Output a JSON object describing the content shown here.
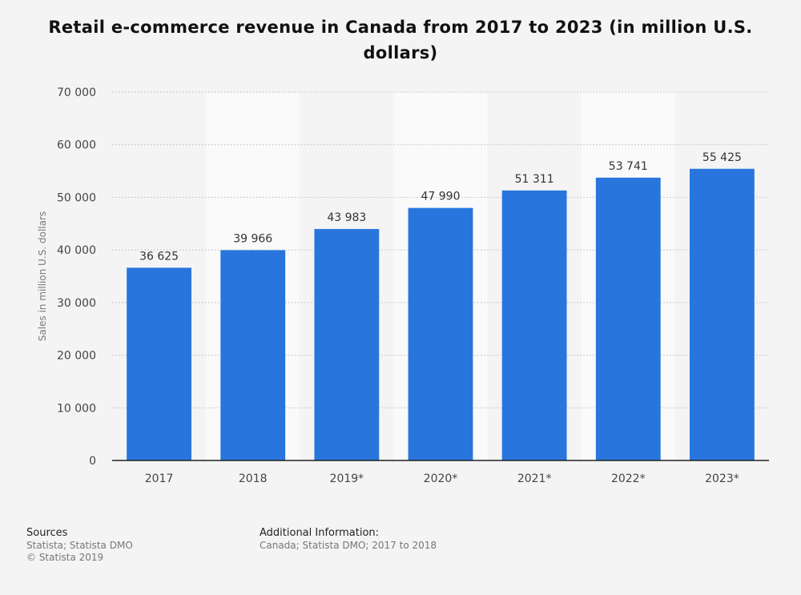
{
  "title": "Retail e-commerce revenue in Canada from 2017 to 2023 (in million U.S. dollars)",
  "footer": {
    "sources_heading": "Sources",
    "sources_line1": "Statista; Statista DMO",
    "sources_line2": "© Statista 2019",
    "info_heading": "Additional Information:",
    "info_line1": "Canada; Statista DMO; 2017 to 2018"
  },
  "colors": {
    "bar": "#2876dd",
    "background": "#f4f4f4",
    "band": "#fafafa"
  },
  "chart_data": {
    "type": "bar",
    "title": "Retail e-commerce revenue in Canada from 2017 to 2023 (in million U.S. dollars)",
    "xlabel": "",
    "ylabel": "Sales in million U.S. dollars",
    "categories": [
      "2017",
      "2018",
      "2019*",
      "2020*",
      "2021*",
      "2022*",
      "2023*"
    ],
    "values": [
      36625,
      39966,
      43983,
      47990,
      51311,
      53741,
      55425
    ],
    "value_labels": [
      "36 625",
      "39 966",
      "43 983",
      "47 990",
      "51 311",
      "53 741",
      "55 425"
    ],
    "ylim": [
      0,
      70000
    ],
    "yticks": [
      0,
      10000,
      20000,
      30000,
      40000,
      50000,
      60000,
      70000
    ],
    "ytick_labels": [
      "0",
      "10 000",
      "20 000",
      "30 000",
      "40 000",
      "50 000",
      "60 000",
      "70 000"
    ],
    "grid": true,
    "legend": "none"
  }
}
